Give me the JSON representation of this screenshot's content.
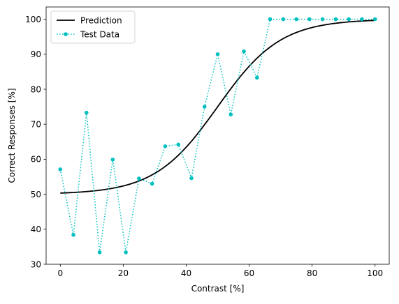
{
  "chart_data": {
    "type": "line",
    "title": "",
    "xlabel": "Contrast [%]",
    "ylabel": "Correct Responses [%]",
    "xlim": [
      -4.5,
      104.5
    ],
    "ylim": [
      30,
      103.5
    ],
    "xticks": [
      0,
      20,
      40,
      60,
      80,
      100
    ],
    "yticks": [
      30,
      40,
      50,
      60,
      70,
      80,
      90,
      100
    ],
    "grid": false,
    "legend_placement": "top-left",
    "series": [
      {
        "name": "Prediction",
        "style": "solid line",
        "color": "#000000",
        "function": "logistic",
        "params": {
          "lower": 50,
          "upper": 100,
          "midpoint": 50,
          "slope": 0.1
        },
        "x_range": [
          0,
          100
        ]
      },
      {
        "name": "Test Data",
        "style": "dotted line with circle markers",
        "color": "#00bfbf",
        "x": [
          0,
          4.17,
          8.33,
          12.5,
          16.67,
          20.83,
          25,
          29.17,
          33.33,
          37.5,
          41.67,
          45.83,
          50,
          54.17,
          58.33,
          62.5,
          66.67,
          70.83,
          75,
          79.17,
          83.33,
          87.5,
          91.67,
          95.83,
          100
        ],
        "values": [
          57.1,
          38.4,
          73.3,
          33.4,
          59.9,
          33.4,
          54.5,
          53.0,
          63.7,
          64.2,
          54.6,
          75.0,
          90.0,
          72.8,
          90.8,
          83.3,
          100,
          100,
          100,
          100,
          100,
          100,
          100,
          100,
          100
        ]
      }
    ]
  }
}
